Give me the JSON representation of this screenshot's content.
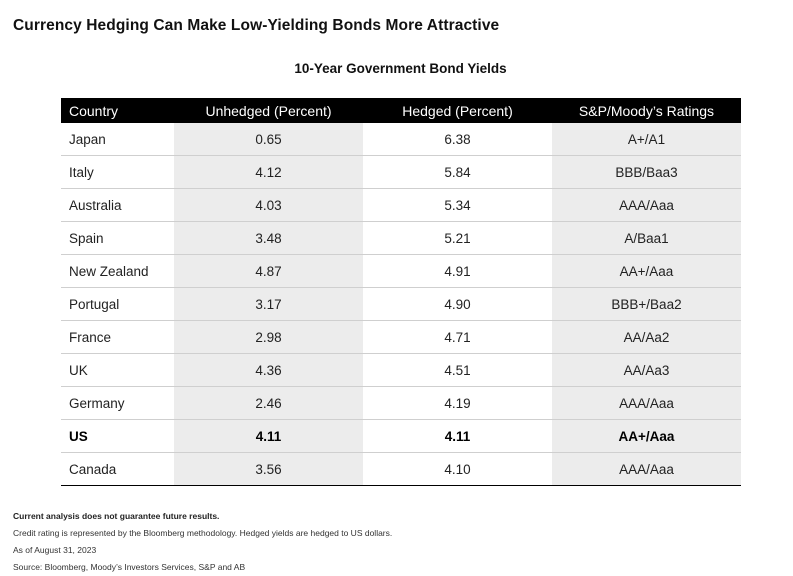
{
  "header": {
    "title": "Currency Hedging Can Make Low-Yielding Bonds More Attractive",
    "subtitle": "10-Year Government Bond Yields"
  },
  "chart_data": {
    "type": "table",
    "title": "10-Year Government Bond Yields",
    "columns": [
      "Country",
      "Unhedged (Percent)",
      "Hedged (Percent)",
      "S&P/Moody’s Ratings"
    ],
    "rows": [
      {
        "country": "Japan",
        "unhedged": "0.65",
        "hedged": "6.38",
        "rating": "A+/A1",
        "bold": false
      },
      {
        "country": "Italy",
        "unhedged": "4.12",
        "hedged": "5.84",
        "rating": "BBB/Baa3",
        "bold": false
      },
      {
        "country": "Australia",
        "unhedged": "4.03",
        "hedged": "5.34",
        "rating": "AAA/Aaa",
        "bold": false
      },
      {
        "country": "Spain",
        "unhedged": "3.48",
        "hedged": "5.21",
        "rating": "A/Baa1",
        "bold": false
      },
      {
        "country": "New Zealand",
        "unhedged": "4.87",
        "hedged": "4.91",
        "rating": "AA+/Aaa",
        "bold": false
      },
      {
        "country": "Portugal",
        "unhedged": "3.17",
        "hedged": "4.90",
        "rating": "BBB+/Baa2",
        "bold": false
      },
      {
        "country": "France",
        "unhedged": "2.98",
        "hedged": "4.71",
        "rating": "AA/Aa2",
        "bold": false
      },
      {
        "country": "UK",
        "unhedged": "4.36",
        "hedged": "4.51",
        "rating": "AA/Aa3",
        "bold": false
      },
      {
        "country": "Germany",
        "unhedged": "2.46",
        "hedged": "4.19",
        "rating": "AAA/Aaa",
        "bold": false
      },
      {
        "country": "US",
        "unhedged": "4.11",
        "hedged": "4.11",
        "rating": "AA+/Aaa",
        "bold": true
      },
      {
        "country": "Canada",
        "unhedged": "3.56",
        "hedged": "4.10",
        "rating": "AAA/Aaa",
        "bold": false
      }
    ]
  },
  "footer": {
    "disclaimer": "Current analysis does not guarantee future results.",
    "credit_note": "Credit rating is represented by the Bloomberg methodology. Hedged yields are hedged to US dollars.",
    "as_of": "As of August 31, 2023",
    "source": "Source: Bloomberg, Moody’s Investors Services, S&P and AB"
  },
  "colors": {
    "header_background": "#000000",
    "header_text": "#ffffff",
    "shaded_column": "#ececec",
    "row_divider": "#cfcfcf"
  }
}
